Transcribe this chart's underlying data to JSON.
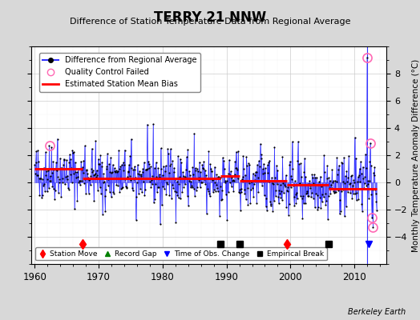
{
  "title": "TERRY 21 NNW",
  "subtitle": "Difference of Station Temperature Data from Regional Average",
  "ylabel": "Monthly Temperature Anomaly Difference (°C)",
  "credit": "Berkeley Earth",
  "bg_color": "#d8d8d8",
  "plot_bg_color": "#ffffff",
  "ylim": [
    -6,
    10
  ],
  "xlim": [
    1959.5,
    2015.0
  ],
  "yticks": [
    -4,
    -2,
    0,
    2,
    4,
    6,
    8
  ],
  "xticks": [
    1960,
    1970,
    1980,
    1990,
    2000,
    2010
  ],
  "line_color": "#3333ff",
  "dot_color": "#000000",
  "bias_color": "#ff0000",
  "qc_color": "#ff69b4",
  "seed": 42,
  "n_points": 636,
  "start_year": 1960.0,
  "end_year": 2013.5,
  "station_moves": [
    1967.5,
    1999.5
  ],
  "empirical_breaks": [
    1989.0,
    1992.0,
    2006.0
  ],
  "tobs_changes": [
    2012.2
  ],
  "qc_failed_times": [
    1962.3,
    2012.0,
    2012.5,
    2012.7,
    2012.9
  ],
  "qc_failed_vals": [
    2.7,
    9.2,
    2.9,
    -2.6,
    -3.3
  ],
  "extreme_spike_time": 2012.0,
  "extreme_spike_val": 9.2,
  "bias_segments": [
    {
      "x": [
        1960.0,
        1967.5
      ],
      "y": [
        1.0,
        1.0
      ]
    },
    {
      "x": [
        1967.5,
        1989.0
      ],
      "y": [
        0.3,
        0.3
      ]
    },
    {
      "x": [
        1989.0,
        1992.0
      ],
      "y": [
        0.5,
        0.5
      ]
    },
    {
      "x": [
        1992.0,
        1999.5
      ],
      "y": [
        0.1,
        0.1
      ]
    },
    {
      "x": [
        1999.5,
        2006.0
      ],
      "y": [
        -0.15,
        -0.15
      ]
    },
    {
      "x": [
        2006.0,
        2013.5
      ],
      "y": [
        -0.45,
        -0.45
      ]
    }
  ],
  "event_y": -4.5,
  "marker_y_sm": -4.5,
  "marker_y_eb": -4.5,
  "marker_y_tobs": -4.5
}
